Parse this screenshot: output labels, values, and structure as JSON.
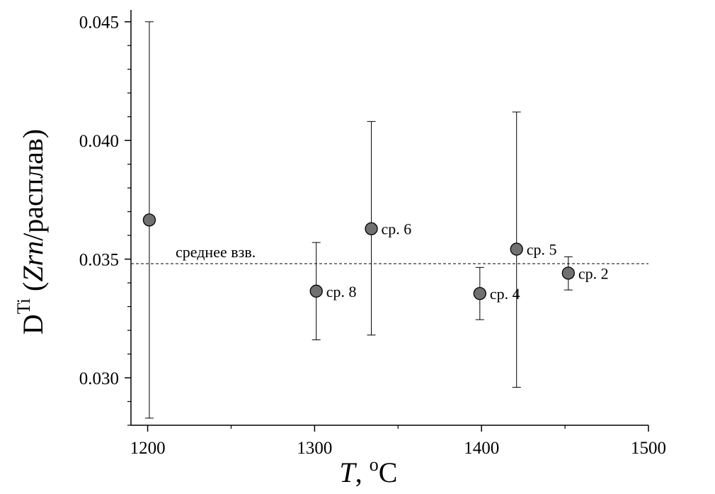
{
  "chart_data": {
    "type": "scatter",
    "xlabel": {
      "italic": "T",
      "rest": ", ",
      "sup": "o",
      "unit": "C"
    },
    "ylabel": {
      "base": "D",
      "sup": "Ti",
      "open": " (",
      "italic": "Zrn",
      "rest": "/расплав)"
    },
    "xlim": [
      1190,
      1500
    ],
    "ylim": [
      0.028,
      0.0455
    ],
    "x_ticks": [
      1200,
      1300,
      1400,
      1500
    ],
    "x_tick_labels": [
      "1200",
      "1300",
      "1400",
      "1500"
    ],
    "y_ticks": [
      0.03,
      0.035,
      0.04,
      0.045
    ],
    "y_tick_labels": [
      "0.030",
      "0.035",
      "0.040",
      "0.045"
    ],
    "x_minor_step": 50,
    "y_minor_step": 0.001,
    "marker_color": "#707070",
    "points": [
      {
        "x": 1201,
        "y": 0.03665,
        "err_low": 0.0283,
        "err_high": 0.045,
        "label": ""
      },
      {
        "x": 1301,
        "y": 0.03365,
        "err_low": 0.0316,
        "err_high": 0.0357,
        "label": "ср. 8"
      },
      {
        "x": 1334,
        "y": 0.03628,
        "err_low": 0.0318,
        "err_high": 0.0408,
        "label": "ср. 6"
      },
      {
        "x": 1399,
        "y": 0.03355,
        "err_low": 0.03245,
        "err_high": 0.03465,
        "label": "ср. 4"
      },
      {
        "x": 1421,
        "y": 0.03542,
        "err_low": 0.0296,
        "err_high": 0.0412,
        "label": "ср. 5"
      },
      {
        "x": 1452,
        "y": 0.03441,
        "err_low": 0.0337,
        "err_high": 0.0351,
        "label": "ср. 2"
      }
    ],
    "mean_line": {
      "y": 0.03481,
      "label": "среднее взв."
    },
    "grid": false,
    "legend": "none"
  }
}
